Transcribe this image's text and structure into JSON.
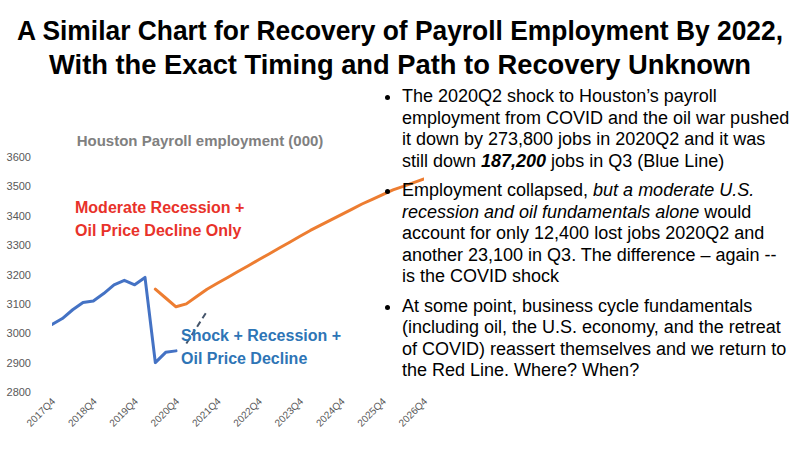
{
  "slide": {
    "title": [
      "A Similar Chart for Recovery of Payroll Employment By 2022,",
      "With the Exact Timing and Path to Recovery Unknown"
    ],
    "bullets": [
      [
        {
          "text": "The 2020Q2 shock to Houston’s payroll employment from COVID and the oil war pushed it down by 273,800 jobs in 2020Q2 and it was still down ",
          "style": "normal"
        },
        {
          "text": "187,200",
          "style": "bold-italic"
        },
        {
          "text": " jobs in Q3 (Blue Line)",
          "style": "normal"
        }
      ],
      [
        {
          "text": "Employment collapsed, ",
          "style": "normal"
        },
        {
          "text": "but a moderate U.S. recession and oil fundamentals alone",
          "style": "italic"
        },
        {
          "text": " would account for only 12,400 lost jobs 2020Q2 and another 23,100 in Q3. The difference – again -- is the COVID shock",
          "style": "normal"
        }
      ],
      [
        {
          "text": "At some point, business cycle fundamentals (including oil, the U.S. economy, and the retreat of COVID) reassert themselves and we return to the Red Line. Where? When?",
          "style": "normal"
        }
      ]
    ]
  },
  "chart_data": {
    "type": "line",
    "title": "Houston Payroll employment (000)",
    "categories": [
      "2017Q4",
      null,
      null,
      null,
      "2018Q4",
      null,
      null,
      null,
      "2019Q4",
      null,
      null,
      null,
      "2020Q4",
      null,
      null,
      null,
      "2021Q4",
      null,
      null,
      null,
      "2022Q4",
      null,
      null,
      null,
      "2023Q4",
      null,
      null,
      null,
      "2024Q4",
      null,
      null,
      null,
      "2025Q4",
      null,
      null,
      null,
      "2026Q4"
    ],
    "series": [
      {
        "color": "#4472c4",
        "line_style": "solid",
        "values": [
          3030,
          3050,
          3080,
          3105,
          3110,
          3135,
          3165,
          3180,
          3165,
          3190,
          2900,
          2935,
          2940,
          null,
          null,
          null,
          null,
          null,
          null,
          null,
          null,
          null,
          null,
          null,
          null,
          null,
          null,
          null,
          null,
          null,
          null,
          null,
          null,
          null,
          null,
          null,
          null
        ]
      },
      {
        "color": "#ed7d31",
        "line_style": "solid",
        "values": [
          null,
          null,
          null,
          null,
          null,
          null,
          null,
          null,
          null,
          null,
          3150,
          3120,
          3090,
          3100,
          3125,
          3150,
          3170,
          3190,
          3210,
          3230,
          3250,
          3270,
          3290,
          3310,
          3330,
          3350,
          3368,
          3386,
          3404,
          3422,
          3440,
          3456,
          3472,
          3488,
          3500,
          3513,
          3525
        ]
      },
      {
        "color": "#44546a",
        "line_style": "dashed",
        "values": [
          null,
          null,
          null,
          null,
          null,
          null,
          null,
          null,
          null,
          null,
          null,
          null,
          null,
          2965,
          3020,
          3075,
          null,
          null,
          null,
          null,
          null,
          null,
          null,
          null,
          null,
          null,
          null,
          null,
          null,
          null,
          null,
          null,
          null,
          null,
          null,
          null,
          null
        ]
      }
    ],
    "annotations": [
      {
        "text": [
          "Moderate Recession +",
          "Oil Price Decline Only"
        ],
        "color": "#e8322a"
      },
      {
        "text": [
          "Shock + Recession +",
          "Oil Price Decline"
        ],
        "color": "#2e75b6"
      }
    ],
    "ylim": [
      2800,
      3600
    ],
    "yticks": [
      2800,
      2900,
      3000,
      3100,
      3200,
      3300,
      3400,
      3500,
      3600
    ],
    "grid": false
  }
}
